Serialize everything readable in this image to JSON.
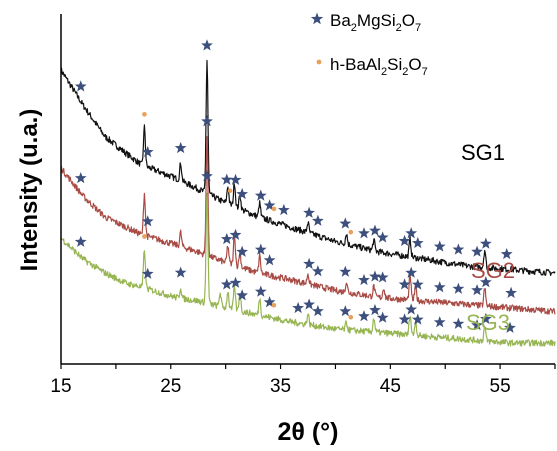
{
  "chart_data": {
    "type": "line",
    "xlabel": "2θ (°)",
    "ylabel": "Intensity (u.a.)",
    "xlim": [
      15,
      60
    ],
    "x_ticks": [
      "15",
      "25",
      "35",
      "45",
      "55"
    ],
    "y_ticks": [],
    "grid": false,
    "legend": {
      "position": "top-right",
      "entries": [
        {
          "marker": "star",
          "color": "#3d4f7c",
          "main": "Ba",
          "subs": [
            [
              "2",
              "Mg"
            ],
            [
              "",
              "Si"
            ],
            [
              "2",
              "O"
            ],
            [
              "7",
              ""
            ]
          ]
        },
        {
          "marker": "dot",
          "color": "#e8a05a",
          "main": "h-BaAl",
          "subs": [
            [
              "2",
              "Si"
            ],
            [
              "2",
              "O"
            ],
            [
              "7",
              ""
            ]
          ]
        }
      ]
    },
    "legend_text": {
      "phase1": "Ba2MgSi2O7",
      "phase2": "h-BaAl2Si2O7"
    },
    "series": [
      {
        "name": "SG1",
        "color": "#111111",
        "label_color": "#000000",
        "points": [
          [
            15.0,
            0.84
          ],
          [
            17,
            0.74
          ],
          [
            19,
            0.65
          ],
          [
            21,
            0.6
          ],
          [
            22.3,
            0.57
          ],
          [
            25.5,
            0.53
          ],
          [
            27.5,
            0.5
          ],
          [
            30,
            0.46
          ],
          [
            33,
            0.42
          ],
          [
            36,
            0.39
          ],
          [
            40,
            0.35
          ],
          [
            44,
            0.32
          ],
          [
            48,
            0.3
          ],
          [
            52,
            0.28
          ],
          [
            56,
            0.27
          ],
          [
            60,
            0.26
          ]
        ],
        "peaks": [
          [
            22.6,
            0.11
          ],
          [
            25.9,
            0.05
          ],
          [
            28.3,
            0.38
          ],
          [
            30.2,
            0.05
          ],
          [
            30.8,
            0.07
          ],
          [
            31.3,
            0.04
          ],
          [
            33.1,
            0.04
          ],
          [
            37.5,
            0.03
          ],
          [
            41,
            0.03
          ],
          [
            43.5,
            0.03
          ],
          [
            46.8,
            0.05
          ],
          [
            53.6,
            0.05
          ]
        ],
        "stars": [
          16.8,
          22.9,
          25.9,
          28.3,
          30.1,
          30.9,
          31.5,
          33.2,
          34.0,
          35.3,
          37.6,
          38.4,
          40.9,
          42.6,
          43.6,
          44.3,
          46.3,
          46.9,
          47.5,
          49.5,
          51.2,
          52.9,
          53.7,
          55.6
        ],
        "dots": [
          22.6,
          30.4,
          34.4,
          41.4
        ]
      },
      {
        "name": "SG2",
        "color": "#a84b45",
        "label_color": "#a84b45",
        "points": [
          [
            15.0,
            0.56
          ],
          [
            17,
            0.48
          ],
          [
            19,
            0.42
          ],
          [
            21,
            0.39
          ],
          [
            22.3,
            0.37
          ],
          [
            25.5,
            0.34
          ],
          [
            27.5,
            0.32
          ],
          [
            30,
            0.29
          ],
          [
            33,
            0.26
          ],
          [
            36,
            0.24
          ],
          [
            40,
            0.21
          ],
          [
            44,
            0.19
          ],
          [
            48,
            0.18
          ],
          [
            52,
            0.17
          ],
          [
            56,
            0.16
          ],
          [
            60,
            0.15
          ]
        ],
        "peaks": [
          [
            22.6,
            0.12
          ],
          [
            25.9,
            0.04
          ],
          [
            28.3,
            0.34
          ],
          [
            30.2,
            0.05
          ],
          [
            30.8,
            0.09
          ],
          [
            31.3,
            0.04
          ],
          [
            33.1,
            0.05
          ],
          [
            37.5,
            0.03
          ],
          [
            41,
            0.03
          ],
          [
            43.5,
            0.03
          ],
          [
            44.4,
            0.03
          ],
          [
            46.8,
            0.07
          ],
          [
            47.3,
            0.04
          ],
          [
            53.6,
            0.05
          ]
        ],
        "stars": [
          16.8,
          22.9,
          28.3,
          30.1,
          30.9,
          31.5,
          33.2,
          34.0,
          37.6,
          38.4,
          40.9,
          42.6,
          43.6,
          44.3,
          46.3,
          46.9,
          47.5,
          49.5,
          51.2,
          52.9,
          53.7,
          56.0
        ],
        "dots": []
      },
      {
        "name": "SG3",
        "color": "#97b553",
        "label_color": "#97b553",
        "points": [
          [
            15.0,
            0.36
          ],
          [
            17,
            0.3
          ],
          [
            19,
            0.26
          ],
          [
            21,
            0.23
          ],
          [
            22.3,
            0.22
          ],
          [
            25.5,
            0.19
          ],
          [
            27.5,
            0.18
          ],
          [
            30,
            0.16
          ],
          [
            33,
            0.14
          ],
          [
            36,
            0.12
          ],
          [
            40,
            0.1
          ],
          [
            44,
            0.09
          ],
          [
            48,
            0.08
          ],
          [
            52,
            0.07
          ],
          [
            56,
            0.06
          ],
          [
            60,
            0.06
          ]
        ],
        "peaks": [
          [
            22.6,
            0.11
          ],
          [
            25.9,
            0.03
          ],
          [
            28.3,
            0.32
          ],
          [
            29.5,
            0.04
          ],
          [
            30.2,
            0.05
          ],
          [
            30.8,
            0.07
          ],
          [
            31.3,
            0.05
          ],
          [
            33.1,
            0.05
          ],
          [
            37.5,
            0.03
          ],
          [
            41,
            0.02
          ],
          [
            43.5,
            0.04
          ],
          [
            46.8,
            0.06
          ],
          [
            47.3,
            0.04
          ],
          [
            53.6,
            0.04
          ]
        ],
        "stars": [
          16.8,
          22.9,
          25.9,
          28.3,
          30.1,
          30.9,
          31.5,
          33.2,
          34.0,
          36.6,
          37.6,
          38.4,
          40.9,
          42.6,
          43.6,
          44.3,
          46.3,
          46.9,
          47.5,
          49.5,
          51.2,
          52.9,
          53.7,
          55.9
        ],
        "dots": [
          22.6,
          34.4,
          41.4
        ]
      }
    ]
  }
}
